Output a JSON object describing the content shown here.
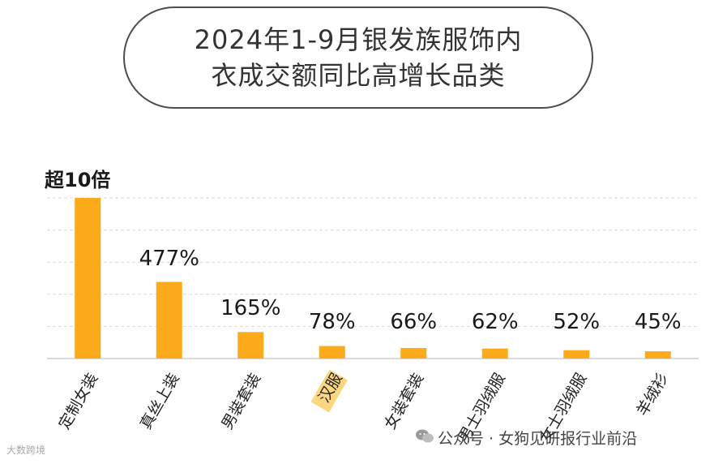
{
  "title": {
    "line1": "2024年1-9月银发族服饰内",
    "line2": "衣成交额同比高增长品类"
  },
  "chart_data": {
    "type": "bar",
    "title": "2024年1-9月银发族服饰内衣成交额同比高增长品类",
    "categories": [
      "定制女装",
      "真丝上装",
      "男装套装",
      "汉服",
      "女装套装",
      "男士羽绒服",
      "女士羽绒服",
      "羊绒衫"
    ],
    "values": [
      1000,
      477,
      165,
      78,
      66,
      62,
      52,
      45
    ],
    "value_unit": "%",
    "data_labels": [
      "超10倍",
      "477%",
      "165%",
      "78%",
      "66%",
      "62%",
      "52%",
      "45%"
    ],
    "highlighted_category": "汉服",
    "colors": {
      "bar": "#FBAA19",
      "highlight_bg": "#FCD77F",
      "grid": "#d9d9d9",
      "axis": "#cfcfcf"
    },
    "grid": true
  },
  "footer": {
    "watermark_left": "大数跨境",
    "watermark_right": "公众号 · 女狗见研报行业前沿"
  }
}
